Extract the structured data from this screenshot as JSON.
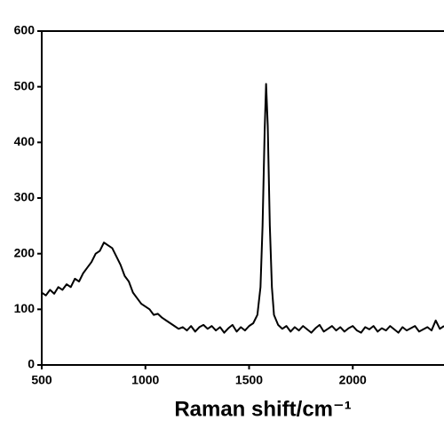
{
  "chart_data": {
    "type": "line",
    "x_label": "Raman shift/cm⁻¹",
    "x": [
      500,
      520,
      540,
      560,
      580,
      600,
      620,
      640,
      660,
      680,
      700,
      720,
      740,
      760,
      780,
      800,
      820,
      840,
      860,
      880,
      900,
      920,
      940,
      960,
      980,
      1000,
      1020,
      1040,
      1060,
      1080,
      1100,
      1120,
      1140,
      1160,
      1180,
      1200,
      1220,
      1240,
      1260,
      1280,
      1300,
      1320,
      1340,
      1360,
      1380,
      1400,
      1420,
      1440,
      1460,
      1480,
      1500,
      1520,
      1540,
      1555,
      1565,
      1575,
      1582,
      1590,
      1600,
      1610,
      1620,
      1640,
      1660,
      1680,
      1700,
      1720,
      1740,
      1760,
      1780,
      1800,
      1820,
      1840,
      1860,
      1880,
      1900,
      1920,
      1940,
      1960,
      1980,
      2000,
      2020,
      2040,
      2060,
      2080,
      2100,
      2120,
      2140,
      2160,
      2180,
      2200,
      2220,
      2240,
      2260,
      2280,
      2300,
      2320,
      2340,
      2360,
      2380,
      2400,
      2420,
      2440
    ],
    "series": [
      {
        "color": "#000000",
        "values": [
          130,
          125,
          135,
          128,
          140,
          135,
          145,
          140,
          155,
          150,
          165,
          175,
          185,
          200,
          205,
          220,
          215,
          210,
          195,
          180,
          160,
          150,
          130,
          120,
          110,
          105,
          100,
          90,
          92,
          85,
          80,
          75,
          70,
          65,
          68,
          62,
          70,
          60,
          68,
          72,
          65,
          70,
          62,
          68,
          58,
          66,
          72,
          60,
          68,
          62,
          70,
          75,
          90,
          140,
          250,
          420,
          505,
          430,
          250,
          140,
          90,
          72,
          65,
          70,
          60,
          68,
          62,
          70,
          64,
          58,
          66,
          72,
          60,
          65,
          70,
          62,
          68,
          60,
          66,
          70,
          62,
          58,
          68,
          64,
          70,
          60,
          66,
          62,
          70,
          64,
          58,
          68,
          62,
          66,
          70,
          60,
          64,
          68,
          62,
          80,
          65,
          70
        ]
      }
    ],
    "xlim": [
      500,
      2440
    ],
    "xticks": [
      500,
      1000,
      1500,
      2000
    ],
    "ylim": [
      0,
      600
    ],
    "yticks": [
      0,
      100,
      200,
      300,
      400,
      500,
      600
    ]
  }
}
